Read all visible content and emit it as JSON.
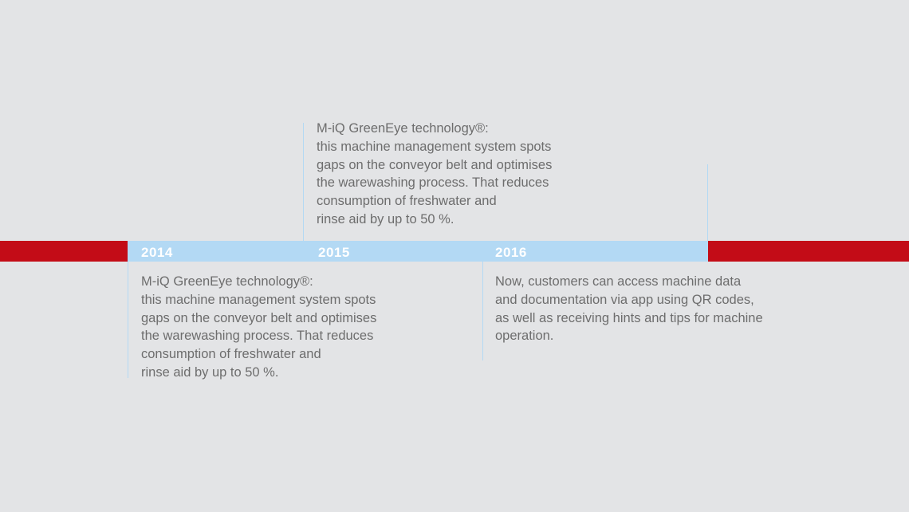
{
  "colors": {
    "background": "#e3e4e6",
    "timeline_red": "#c30c17",
    "timeline_blue": "#b3d9f4",
    "text": "#6d6d6d"
  },
  "years": [
    "2014",
    "2015",
    "2016"
  ],
  "entries": [
    {
      "lines": [
        "M-iQ GreenEye technology®:",
        "this machine management system spots",
        "gaps on the conveyor belt and optimises",
        "the warewashing process. That reduces",
        "consumption of freshwater and",
        "rinse aid by up to 50 %."
      ]
    },
    {
      "lines": [
        "M-iQ GreenEye technology®:",
        "this machine management system spots",
        "gaps on the conveyor belt and optimises",
        "the warewashing process. That reduces",
        "consumption of freshwater and",
        "rinse aid by up to 50 %."
      ]
    },
    {
      "lines": [
        "Now, customers can access machine data",
        "and documentation via app using QR codes,",
        "as well as receiving hints and tips for machine",
        "operation."
      ]
    }
  ]
}
